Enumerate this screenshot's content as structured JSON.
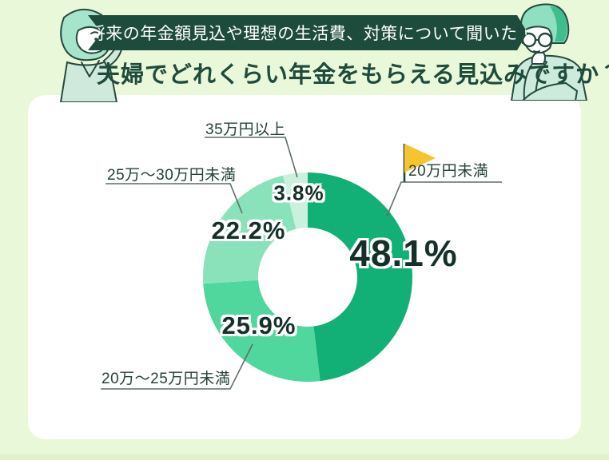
{
  "header": {
    "ribbon_label": "将来の年金額見込や理想の生活費、対策について聞いた！",
    "title": "夫婦でどれくらい年金をもらえる見込みですか？"
  },
  "illustrations": {
    "left": "woman-pointing-illustration",
    "right": "man-thinking-glasses-illustration"
  },
  "colors": {
    "page_bg": "#eaf8da",
    "footer_strip": "#e0f2cb",
    "ribbon_bg": "#1d4b3c",
    "ribbon_text": "#ffffff",
    "title_text": "#1d4b3c",
    "card_bg": "#ffffff",
    "label_text": "#24413a",
    "percent_text": "#143029",
    "leader_line": "#5d6e67",
    "flag": "#f6c42f"
  },
  "chart_data": {
    "type": "pie",
    "subtype": "donut",
    "title": "夫婦でどれくらい年金をもらえる見込みですか？",
    "unit": "%",
    "start_angle_deg": 0,
    "direction": "clockwise",
    "legend": "none",
    "labels_style": "callout-lines",
    "categories": [
      "20万円未満",
      "20万〜25万円未満",
      "25万〜30万円未満",
      "35万円以上"
    ],
    "values": [
      48.1,
      25.9,
      22.2,
      3.8
    ],
    "segments": [
      {
        "label": "20万円未満",
        "value": 48.1,
        "value_label": "48.1%",
        "color": "#12b076",
        "flagged": true
      },
      {
        "label": "20万〜25万円未満",
        "value": 25.9,
        "value_label": "25.9%",
        "color": "#4fd79d",
        "flagged": false
      },
      {
        "label": "25万〜30万円未満",
        "value": 22.2,
        "value_label": "22.2%",
        "color": "#8ae2bb",
        "flagged": false
      },
      {
        "label": "35万円以上",
        "value": 3.8,
        "value_label": "3.8%",
        "color": "#c9f1dd",
        "flagged": false
      }
    ]
  }
}
